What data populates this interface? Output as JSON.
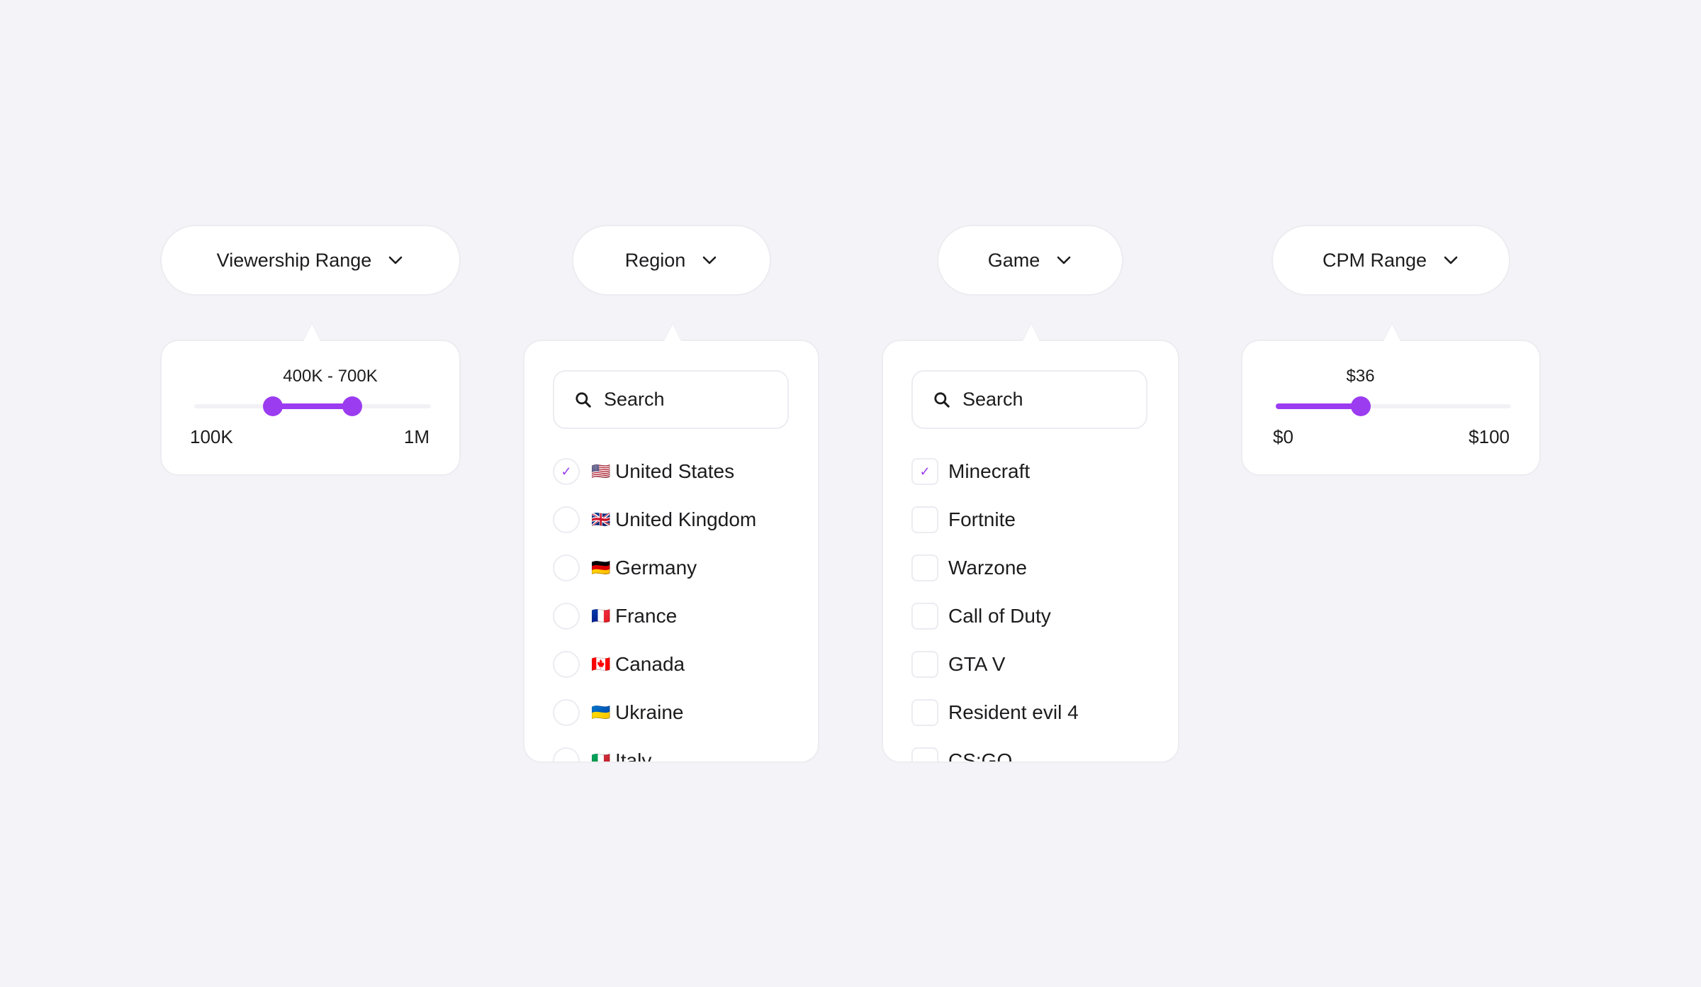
{
  "accent_color": "#9b3cf0",
  "filters": {
    "viewership": {
      "label": "Viewership Range",
      "value_label": "400K - 700K",
      "min_label": "100K",
      "max_label": "1M",
      "min": 100000,
      "max": 1000000,
      "low": 400000,
      "high": 700000
    },
    "region": {
      "label": "Region",
      "search_placeholder": "Search",
      "items": [
        {
          "flag": "🇺🇸",
          "label": "United States",
          "checked": true
        },
        {
          "flag": "🇬🇧",
          "label": "United Kingdom",
          "checked": false
        },
        {
          "flag": "🇩🇪",
          "label": "Germany",
          "checked": false
        },
        {
          "flag": "🇫🇷",
          "label": "France",
          "checked": false
        },
        {
          "flag": "🇨🇦",
          "label": "Canada",
          "checked": false
        },
        {
          "flag": "🇺🇦",
          "label": "Ukraine",
          "checked": false
        },
        {
          "flag": "🇮🇹",
          "label": "Italy",
          "checked": false
        }
      ]
    },
    "game": {
      "label": "Game",
      "search_placeholder": "Search",
      "items": [
        {
          "label": "Minecraft",
          "checked": true
        },
        {
          "label": "Fortnite",
          "checked": false
        },
        {
          "label": "Warzone",
          "checked": false
        },
        {
          "label": "Call of Duty",
          "checked": false
        },
        {
          "label": "GTA V",
          "checked": false
        },
        {
          "label": "Resident evil 4",
          "checked": false
        },
        {
          "label": "CS:GO",
          "checked": false
        }
      ]
    },
    "cpm": {
      "label": "CPM Range",
      "value_label": "$36",
      "min_label": "$0",
      "max_label": "$100",
      "min": 0,
      "max": 100,
      "value": 36
    }
  },
  "check_glyph": "✓"
}
